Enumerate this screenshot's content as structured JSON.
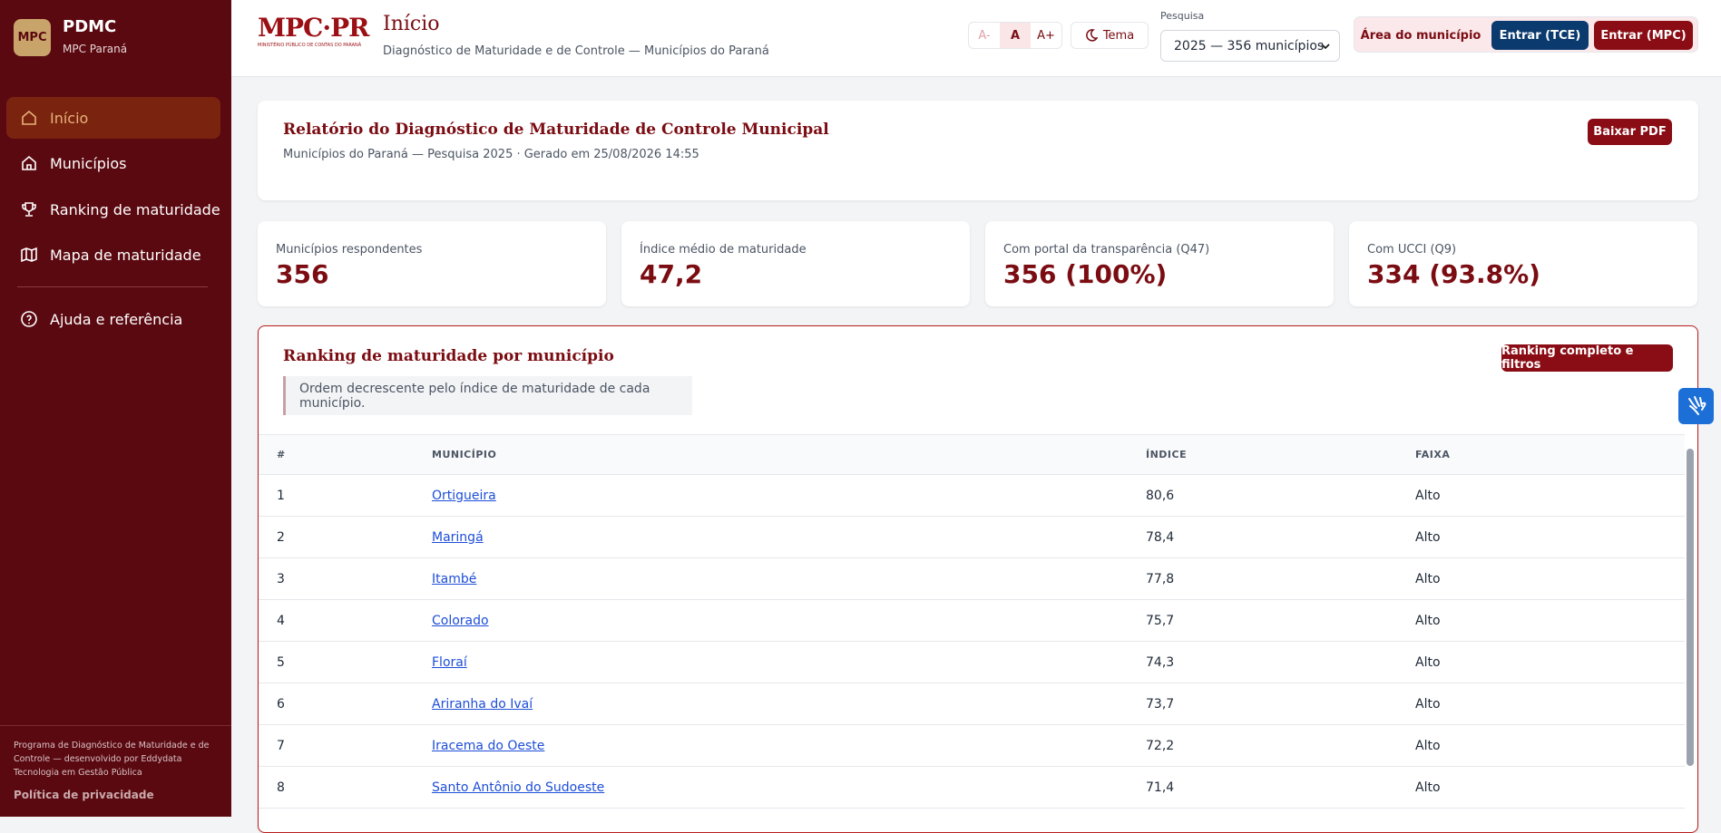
{
  "sidebar": {
    "logo": "MPC",
    "title": "PDMC",
    "subtitle": "MPC Paraná",
    "nav": [
      "Início",
      "Municípios",
      "Ranking de maturidade",
      "Mapa de maturidade",
      "Ajuda e referência"
    ],
    "footer": "Programa de Diagnóstico de Maturidade e de Controle — desenvolvido por Eddydata Tecnologia em Gestão Pública",
    "privacy": "Política de privacidade"
  },
  "header": {
    "logo": "MPC·PR",
    "logo_sub": "MINISTÉRIO PÚBLICO DE CONTAS DO PARANÁ",
    "title": "Início",
    "subtitle": "Diagnóstico de Maturidade e de Controle — Municípios do Paraná",
    "font_buttons": [
      "A-",
      "A",
      "A+"
    ],
    "theme": "Tema",
    "survey_label": "Pesquisa",
    "survey_option": "2025 — 356 municípios",
    "area": "Área do município",
    "login_tce": "Entrar (TCE)",
    "login_mpc": "Entrar (MPC)"
  },
  "report": {
    "title": "Relatório do Diagnóstico de Maturidade de Controle Municipal",
    "subtitle": "Municípios do Paraná — Pesquisa 2025 · Gerado em 25/08/2026 14:55",
    "button": "Baixar PDF"
  },
  "stats": [
    {
      "label": "Municípios respondentes",
      "value": "356"
    },
    {
      "label": "Índice médio de maturidade",
      "value": "47,2"
    },
    {
      "label": "Com portal da transparência (Q47)",
      "value": "356 (100%)"
    },
    {
      "label": "Com UCCI (Q9)",
      "value": "334 (93.8%)"
    }
  ],
  "ranking": {
    "title": "Ranking de maturidade por município",
    "button": "Ranking completo e filtros",
    "note": "Ordem decrescente pelo índice de maturidade de cada município.",
    "columns": [
      "#",
      "MUNICÍPIO",
      "ÍNDICE",
      "FAIXA"
    ],
    "rows": [
      [
        "1",
        "Ortigueira",
        "80,6",
        "Alto"
      ],
      [
        "2",
        "Maringá",
        "78,4",
        "Alto"
      ],
      [
        "3",
        "Itambé",
        "77,8",
        "Alto"
      ],
      [
        "4",
        "Colorado",
        "75,7",
        "Alto"
      ],
      [
        "5",
        "Floraí",
        "74,3",
        "Alto"
      ],
      [
        "6",
        "Ariranha do Ivaí",
        "73,7",
        "Alto"
      ],
      [
        "7",
        "Iracema do Oeste",
        "72,2",
        "Alto"
      ],
      [
        "8",
        "Santo Antônio do Sudoeste",
        "71,4",
        "Alto"
      ]
    ]
  }
}
